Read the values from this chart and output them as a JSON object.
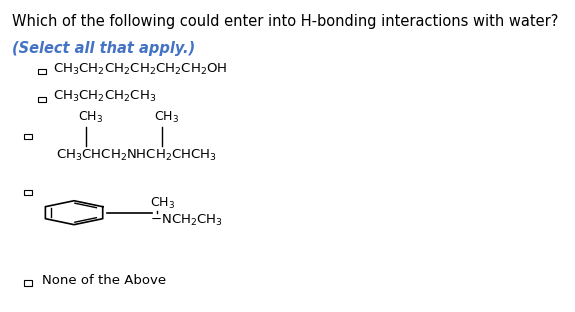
{
  "title": "Which of the following could enter into H-bonding interactions with water?",
  "subtitle": "(Select all that apply.)",
  "subtitle_color": "#4472C4",
  "background_color": "#ffffff",
  "title_fontsize": 10.5,
  "subtitle_fontsize": 10.5,
  "opt1_text": "CH$_3$CH$_2$CH$_2$CH$_2$CH$_2$CH$_2$OH",
  "opt2_text": "CH$_3$CH$_2$CH$_2$CH$_3$",
  "opt3_main": "CH$_3$CHCH$_2$NHCH$_2$CHCH$_3$",
  "opt3_ch3a": "CH$_3$",
  "opt3_ch3b": "CH$_3$",
  "opt4_ch3": "CH$_3$",
  "opt4_ngroup": "$-$NCH$_2$CH$_3$",
  "none_text": "None of the Above",
  "checkbox_size": 0.016
}
